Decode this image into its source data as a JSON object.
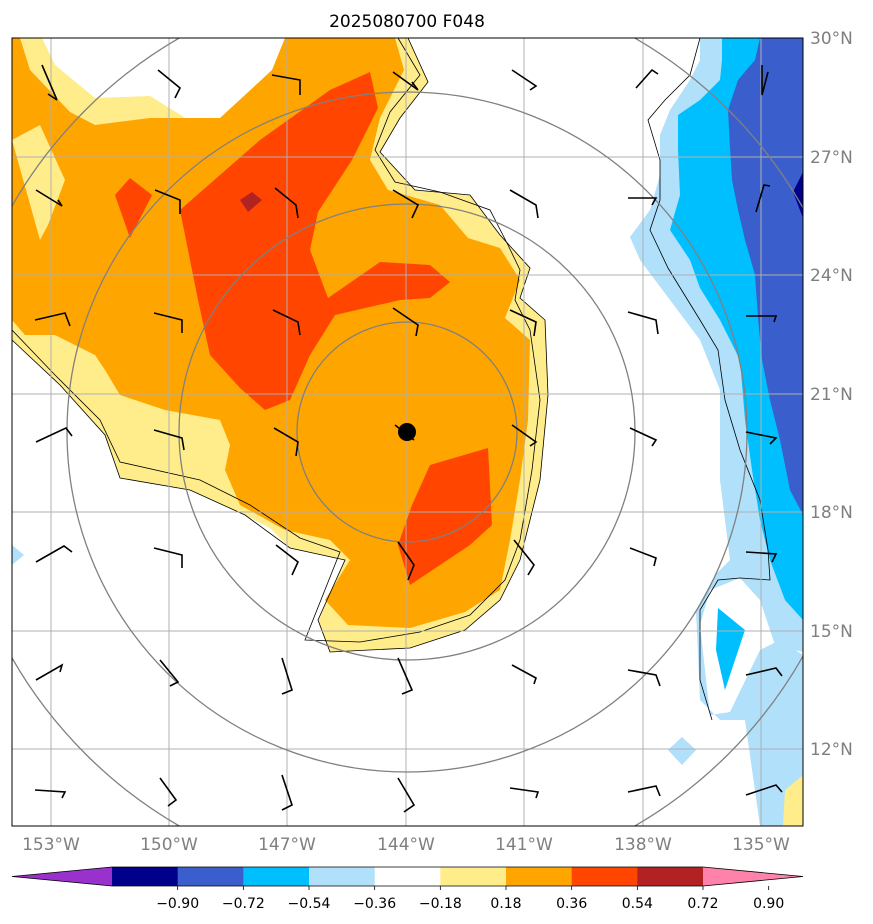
{
  "chart_data": {
    "type": "heatmap",
    "title": "2025080700 F048",
    "x_ticks": [
      "153°W",
      "150°W",
      "147°W",
      "144°W",
      "141°W",
      "138°W",
      "135°W"
    ],
    "x_values": [
      -153,
      -150,
      -147,
      -144,
      -141,
      -138,
      -135
    ],
    "y_ticks": [
      "12°N",
      "15°N",
      "18°N",
      "21°N",
      "24°N",
      "27°N",
      "30°N"
    ],
    "y_values": [
      12,
      15,
      18,
      21,
      24,
      27,
      30
    ],
    "xlim": [
      -154,
      -134
    ],
    "ylim": [
      10,
      30
    ],
    "grid": true,
    "center": {
      "lon": -144,
      "lat": 20.0
    },
    "colorbar": {
      "levels": [
        "−0.90",
        "−0.72",
        "−0.54",
        "−0.36",
        "−0.18",
        "0.18",
        "0.36",
        "0.54",
        "0.72",
        "0.90"
      ],
      "colors": [
        "#9932cc",
        "#00008b",
        "#3a5fcd",
        "#00bfff",
        "#b0e0fa",
        "#ffffff",
        "#ffec8b",
        "#ffa500",
        "#ff4500",
        "#b22222",
        "#ff82ab"
      ],
      "extend": "both"
    }
  },
  "colors": {
    "grid": "#b0b0b0",
    "tick_text": "#7f7f7f",
    "ring": "#808080",
    "outline": "#000000"
  }
}
